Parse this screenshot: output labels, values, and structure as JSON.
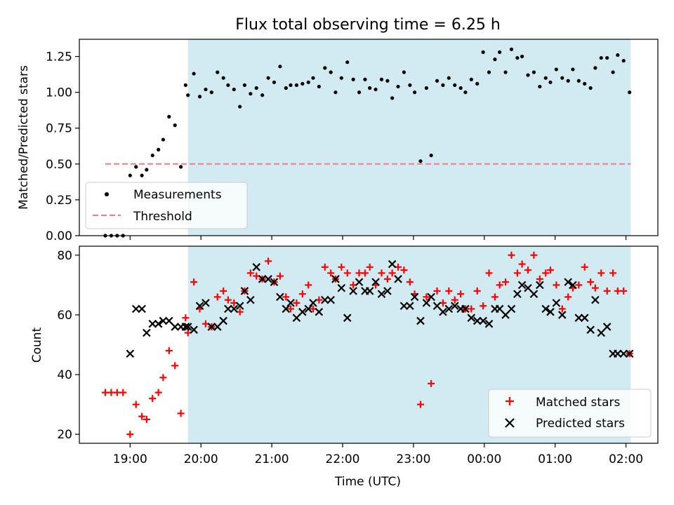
{
  "figure": {
    "title": "Flux total observing time = 6.25 h",
    "xlabel": "Time (UTC)"
  },
  "colors": {
    "shade": "#add8e6",
    "measurement": "#000000",
    "threshold": "#f08080",
    "matched": "#ff0000",
    "predicted": "#000000"
  },
  "chart_data": [
    {
      "type": "scatter",
      "ylabel": "Matched/Predicted stars",
      "xlim": [
        "18:17",
        "02:27"
      ],
      "ylim": [
        0,
        1.37
      ],
      "x_ticks": [
        "19:00",
        "20:00",
        "21:00",
        "22:00",
        "23:00",
        "00:00",
        "01:00",
        "02:00"
      ],
      "y_ticks": [
        "0.00",
        "0.25",
        "0.50",
        "0.75",
        "1.00",
        "1.25"
      ],
      "y_tick_values": [
        0,
        0.25,
        0.5,
        0.75,
        1.0,
        1.25
      ],
      "shaded_span": [
        "19:49",
        "02:04"
      ],
      "legend": {
        "placement": "lower-left",
        "entries": [
          "Measurements",
          "Threshold"
        ]
      },
      "series": [
        {
          "name": "Measurements",
          "marker": "dot",
          "x": [
            "18:39",
            "18:44",
            "18:49",
            "18:54",
            "19:00",
            "19:05",
            "19:10",
            "19:14",
            "19:19",
            "19:24",
            "19:28",
            "19:33",
            "19:38",
            "19:43",
            "19:47",
            "19:49",
            "19:54",
            "19:59",
            "20:04",
            "20:09",
            "20:14",
            "20:19",
            "20:23",
            "20:28",
            "20:33",
            "20:37",
            "20:42",
            "20:47",
            "20:52",
            "20:57",
            "21:02",
            "21:07",
            "21:12",
            "21:16",
            "21:21",
            "21:26",
            "21:31",
            "21:35",
            "21:40",
            "21:45",
            "21:50",
            "21:54",
            "21:59",
            "22:04",
            "22:09",
            "22:14",
            "22:19",
            "22:23",
            "22:28",
            "22:33",
            "22:38",
            "22:42",
            "22:47",
            "22:52",
            "22:57",
            "23:01",
            "23:06",
            "23:11",
            "23:15",
            "23:20",
            "23:25",
            "23:30",
            "23:35",
            "23:40",
            "23:44",
            "23:49",
            "23:54",
            "23:59",
            "00:04",
            "00:09",
            "00:13",
            "00:18",
            "00:23",
            "00:28",
            "00:32",
            "00:37",
            "00:42",
            "00:47",
            "00:52",
            "00:56",
            "01:01",
            "01:06",
            "01:11",
            "01:15",
            "01:20",
            "01:25",
            "01:30",
            "01:34",
            "01:39",
            "01:44",
            "01:49",
            "01:53",
            "01:58",
            "02:03"
          ],
          "y": [
            0,
            0,
            0,
            0,
            0.42,
            0.48,
            0.42,
            0.46,
            0.56,
            0.6,
            0.67,
            0.83,
            0.77,
            0.48,
            1.05,
            0.98,
            1.13,
            0.97,
            1.02,
            1.0,
            1.14,
            1.1,
            1.05,
            1.02,
            0.9,
            1.05,
            0.99,
            1.03,
            0.98,
            1.1,
            1.07,
            1.18,
            1.03,
            1.05,
            1.05,
            1.06,
            1.07,
            1.1,
            1.04,
            1.17,
            1.14,
            1.0,
            1.1,
            1.21,
            1.09,
            1.0,
            1.09,
            1.03,
            1.02,
            1.09,
            1.08,
            0.96,
            1.04,
            1.14,
            1.05,
            1.0,
            0.52,
            1.03,
            0.56,
            1.08,
            1.05,
            1.1,
            1.05,
            1.03,
            1.0,
            1.09,
            1.06,
            1.28,
            1.14,
            1.23,
            1.28,
            1.14,
            1.3,
            1.24,
            1.25,
            1.12,
            1.14,
            1.04,
            1.1,
            1.07,
            1.16,
            1.1,
            1.08,
            1.16,
            1.08,
            1.06,
            1.03,
            1.17,
            1.24,
            1.24,
            1.14,
            1.26,
            1.22,
            1.0
          ]
        },
        {
          "name": "Threshold",
          "style": "dashed-line",
          "x": [
            "18:39",
            "02:04"
          ],
          "y": [
            0.5,
            0.5
          ]
        }
      ]
    },
    {
      "type": "scatter",
      "ylabel": "Count",
      "xlim": [
        "18:17",
        "02:27"
      ],
      "ylim": [
        17,
        83
      ],
      "x_ticks": [
        "19:00",
        "20:00",
        "21:00",
        "22:00",
        "23:00",
        "00:00",
        "01:00",
        "02:00"
      ],
      "y_ticks": [
        "20",
        "40",
        "60",
        "80"
      ],
      "y_tick_values": [
        20,
        40,
        60,
        80
      ],
      "shaded_span": [
        "19:49",
        "02:04"
      ],
      "legend": {
        "placement": "lower-right",
        "entries": [
          "Matched stars",
          "Predicted stars"
        ]
      },
      "series": [
        {
          "name": "Matched stars",
          "marker": "plus",
          "x": [
            "18:39",
            "18:44",
            "18:49",
            "18:54",
            "19:00",
            "19:05",
            "19:10",
            "19:14",
            "19:19",
            "19:24",
            "19:28",
            "19:33",
            "19:38",
            "19:43",
            "19:47",
            "19:49",
            "19:54",
            "19:59",
            "20:04",
            "20:09",
            "20:14",
            "20:19",
            "20:23",
            "20:28",
            "20:33",
            "20:37",
            "20:42",
            "20:47",
            "20:52",
            "20:57",
            "21:02",
            "21:07",
            "21:12",
            "21:16",
            "21:21",
            "21:26",
            "21:31",
            "21:35",
            "21:40",
            "21:45",
            "21:50",
            "21:54",
            "21:59",
            "22:04",
            "22:09",
            "22:14",
            "22:19",
            "22:23",
            "22:28",
            "22:33",
            "22:38",
            "22:42",
            "22:47",
            "22:52",
            "22:57",
            "23:01",
            "23:06",
            "23:11",
            "23:15",
            "23:20",
            "23:25",
            "23:30",
            "23:35",
            "23:40",
            "23:44",
            "23:49",
            "23:54",
            "23:59",
            "00:04",
            "00:09",
            "00:13",
            "00:18",
            "00:23",
            "00:28",
            "00:32",
            "00:37",
            "00:42",
            "00:47",
            "00:52",
            "00:56",
            "01:01",
            "01:06",
            "01:11",
            "01:15",
            "01:20",
            "01:25",
            "01:30",
            "01:34",
            "01:39",
            "01:44",
            "01:49",
            "01:53",
            "01:58",
            "02:03"
          ],
          "y": [
            34,
            34,
            34,
            34,
            20,
            30,
            26,
            25,
            32,
            34,
            39,
            48,
            43,
            27,
            59,
            54,
            71,
            62,
            57,
            56,
            66,
            68,
            65,
            64,
            61,
            68,
            74,
            73,
            72,
            78,
            71,
            73,
            66,
            62,
            64,
            67,
            70,
            62,
            65,
            76,
            74,
            72,
            76,
            74,
            70,
            74,
            74,
            76,
            70,
            74,
            72,
            74,
            76,
            75,
            71,
            67,
            30,
            66,
            37,
            68,
            64,
            68,
            65,
            67,
            62,
            62,
            68,
            63,
            74,
            66,
            70,
            71,
            80,
            74,
            77,
            75,
            80,
            72,
            74,
            75,
            70,
            62,
            66,
            69,
            70,
            76,
            71,
            69,
            74,
            68,
            74,
            68,
            68,
            47
          ]
        },
        {
          "name": "Predicted stars",
          "marker": "x",
          "x": [
            "19:00",
            "19:05",
            "19:10",
            "19:14",
            "19:19",
            "19:24",
            "19:28",
            "19:33",
            "19:38",
            "19:43",
            "19:47",
            "19:49",
            "19:54",
            "19:59",
            "20:04",
            "20:09",
            "20:14",
            "20:19",
            "20:23",
            "20:28",
            "20:33",
            "20:37",
            "20:42",
            "20:47",
            "20:52",
            "20:57",
            "21:02",
            "21:07",
            "21:12",
            "21:16",
            "21:21",
            "21:26",
            "21:31",
            "21:35",
            "21:40",
            "21:45",
            "21:50",
            "21:54",
            "21:59",
            "22:04",
            "22:09",
            "22:14",
            "22:19",
            "22:23",
            "22:28",
            "22:33",
            "22:38",
            "22:42",
            "22:47",
            "22:52",
            "22:57",
            "23:01",
            "23:06",
            "23:11",
            "23:15",
            "23:20",
            "23:25",
            "23:30",
            "23:35",
            "23:40",
            "23:44",
            "23:49",
            "23:54",
            "23:59",
            "00:04",
            "00:09",
            "00:13",
            "00:18",
            "00:23",
            "00:28",
            "00:32",
            "00:37",
            "00:42",
            "00:47",
            "00:52",
            "00:56",
            "01:01",
            "01:06",
            "01:11",
            "01:15",
            "01:20",
            "01:25",
            "01:30",
            "01:34",
            "01:39",
            "01:44",
            "01:49",
            "01:53",
            "01:58",
            "02:03"
          ],
          "y": [
            47,
            62,
            62,
            54,
            57,
            57,
            58,
            58,
            56,
            56,
            56,
            56,
            55,
            63,
            64,
            56,
            56,
            58,
            62,
            62,
            63,
            68,
            65,
            76,
            72,
            72,
            71,
            66,
            62,
            64,
            59,
            61,
            62,
            64,
            61,
            65,
            65,
            72,
            69,
            59,
            68,
            71,
            68,
            68,
            71,
            67,
            68,
            77,
            72,
            63,
            63,
            66,
            58,
            64,
            66,
            63,
            61,
            62,
            63,
            62,
            62,
            59,
            58,
            58,
            57,
            62,
            62,
            60,
            62,
            67,
            70,
            69,
            67,
            70,
            62,
            61,
            64,
            60,
            71,
            70,
            59,
            59,
            55,
            65,
            54,
            56,
            47,
            47,
            47,
            47
          ]
        }
      ]
    }
  ]
}
